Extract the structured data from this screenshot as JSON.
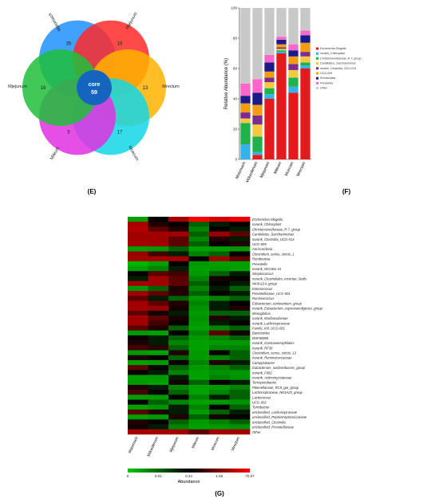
{
  "panel_labels": {
    "e": "(E)",
    "f": "(F)",
    "g": "(G)"
  },
  "venn": {
    "sets": [
      {
        "name": "Mstomach",
        "unique": 35,
        "color": "#1e90ff"
      },
      {
        "name": "Mjejunum",
        "unique": 19,
        "color": "#ff2a2a"
      },
      {
        "name": "Mrectum",
        "unique": 13,
        "color": "#ffb300"
      },
      {
        "name": "Mcecum",
        "unique": 17,
        "color": "#12d7e6"
      },
      {
        "name": "Mileum",
        "unique": 5,
        "color": "#e030e0"
      },
      {
        "name": "Mjejunum",
        "unique": 16,
        "color": "#1fbf3a"
      }
    ],
    "core_label": "core",
    "core_value": 59,
    "core_color": "#1565c0"
  },
  "chart_data": [
    {
      "type": "bar",
      "stacked": true,
      "ylabel": "Relative Abundance (%)",
      "ylim": [
        0,
        100
      ],
      "yticks": [
        0,
        20,
        40,
        60,
        80,
        100
      ],
      "categories": [
        "Mstomach",
        "Mduodenum",
        "Mjejunum",
        "Mileum",
        "Mcecum",
        "Mrectum"
      ],
      "series": [
        {
          "name": "Escherichia-Shigella",
          "color": "#e41a1c",
          "values": [
            0,
            3,
            40,
            70,
            44,
            60
          ]
        },
        {
          "name": "norank_Chloroplast",
          "color": "#33b3e8",
          "values": [
            10,
            2,
            3,
            1,
            4,
            2
          ]
        },
        {
          "name": "Christensenellaceae_R-7_group",
          "color": "#20b24a",
          "values": [
            14,
            10,
            4,
            1,
            6,
            2
          ]
        },
        {
          "name": "Candidatus_Saccharimonas",
          "color": "#f5c842",
          "values": [
            3,
            8,
            4,
            1,
            5,
            4
          ]
        },
        {
          "name": "norank_Clostridia_UCG-014",
          "color": "#7b2d8e",
          "values": [
            4,
            6,
            3,
            1,
            4,
            3
          ]
        },
        {
          "name": "UCG-005",
          "color": "#f39c12",
          "values": [
            6,
            7,
            4,
            2,
            5,
            6
          ]
        },
        {
          "name": "Romboutsia",
          "color": "#1a1a8c",
          "values": [
            5,
            8,
            6,
            3,
            4,
            5
          ]
        },
        {
          "name": "Prevotella",
          "color": "#ff66cc",
          "values": [
            8,
            9,
            5,
            2,
            4,
            3
          ]
        },
        {
          "name": "Other",
          "color": "#c8c8c8",
          "values": [
            50,
            47,
            31,
            19,
            24,
            15
          ]
        }
      ]
    },
    {
      "type": "heatmap",
      "categories": [
        "Mstomach",
        "Mduodenum",
        "Mjejunum",
        "Mileum",
        "Mcecum",
        "Mrectum"
      ],
      "rows": [
        "Escherichia-Shigella",
        "norank_Chloroplast",
        "Christensenellaceae_R-7_group",
        "Candidatus_Saccharimonas",
        "norank_Clostridia_UCG-014",
        "UCG-005",
        "Aeriscardovia",
        "Clostridium_sensu_stricto_1",
        "Romboutsia",
        "Prevotella",
        "norank_WCHB1-41",
        "Streptococcus",
        "norank_Clostridiales_Incertae_Sedis",
        "NK4A214_group",
        "Enterococcus",
        "Prevotellaceae_UCG-001",
        "Ruminococcus",
        "Eubacterium_ruminantium_group",
        "norank_Eubacterium_coprostanoligenes_group",
        "Monoglobus",
        "norank_Muribaculaceae",
        "norank_Lachnospiraceae",
        "Family_XIII_UCG-001",
        "Bacteroides",
        "DNF00809",
        "norank_Gastranaerophilales",
        "norank_RF39",
        "Clostridium_sensu_stricto_13",
        "norank_Ruminococcaceae",
        "Campylobacter",
        "Eubacterium_oxidoreducens_group",
        "norank_F082",
        "norank_Actinomycetaceae",
        "Terrisporobacter",
        "Rikenellaceae_RC9_gut_group",
        "Lachnospiraceae_NK3A20_group",
        "Lactococcus",
        "UCG-002",
        "Turicibacter",
        "unclassified_Lachnospiraceae",
        "unclassified_Peptostreptococcaceae",
        "unclassified_Clostridia",
        "unclassified_Prevotellaceae",
        "Other"
      ],
      "values": [
        [
          0.01,
          0.24,
          5,
          70,
          40,
          60
        ],
        [
          8,
          0.5,
          0.3,
          0.1,
          0.2,
          0.3
        ],
        [
          15,
          1,
          0.5,
          0.05,
          0.3,
          0.2
        ],
        [
          2,
          4,
          3,
          0.1,
          1.5,
          1
        ],
        [
          3,
          2,
          1,
          0.05,
          0.5,
          0.2
        ],
        [
          5,
          3,
          1,
          0.1,
          0.3,
          0.5
        ],
        [
          0.01,
          0.02,
          0.1,
          0.01,
          0.01,
          0.02
        ],
        [
          1.5,
          0.8,
          0.2,
          0.05,
          0.1,
          0.3
        ],
        [
          4,
          6,
          3,
          0.3,
          2,
          1
        ],
        [
          0.005,
          0.01,
          0.3,
          0.02,
          0.01,
          0.01
        ],
        [
          0.01,
          0.05,
          0.2,
          0.01,
          0.02,
          0.01
        ],
        [
          0.3,
          1,
          0.8,
          0.02,
          0.1,
          0.2
        ],
        [
          0.2,
          2,
          1,
          0.05,
          0.4,
          0.3
        ],
        [
          3,
          2,
          1,
          0.1,
          0.3,
          0.2
        ],
        [
          0.02,
          0.1,
          0.5,
          0.05,
          0.2,
          0.1
        ],
        [
          2,
          1,
          0.5,
          0.1,
          0.3,
          0.2
        ],
        [
          1,
          0.2,
          0.1,
          0.02,
          0.05,
          0.1
        ],
        [
          2,
          1,
          0.5,
          0.05,
          0.2,
          0.3
        ],
        [
          3,
          1.5,
          0.4,
          0.03,
          0.2,
          0.5
        ],
        [
          1,
          0.4,
          0.2,
          0.02,
          0.1,
          0.1
        ],
        [
          2,
          1,
          0.4,
          0.03,
          0.5,
          0.2
        ],
        [
          3,
          0.8,
          0.3,
          0.02,
          0.2,
          0.3
        ],
        [
          1,
          0.5,
          0.1,
          0.01,
          0.05,
          0.1
        ],
        [
          0.02,
          0.01,
          0.3,
          0.05,
          1,
          0.4
        ],
        [
          0.3,
          0.2,
          0.1,
          0.02,
          0.05,
          0.1
        ],
        [
          0.5,
          0.2,
          0.05,
          0.01,
          0.02,
          0.02
        ],
        [
          0.8,
          0.6,
          0.1,
          0.01,
          0.05,
          0.05
        ],
        [
          0.02,
          0.01,
          0.5,
          0.02,
          0.3,
          0.1
        ],
        [
          0.5,
          0.3,
          0.1,
          0.02,
          0.05,
          0.1
        ],
        [
          0.01,
          0.02,
          0.3,
          0.05,
          0.5,
          0.2
        ],
        [
          1,
          0.3,
          0.1,
          0.02,
          0.05,
          0.1
        ],
        [
          0.3,
          0.2,
          0.05,
          0.01,
          0.03,
          0.02
        ],
        [
          0.01,
          0.02,
          0.2,
          0.01,
          0.05,
          0.03
        ],
        [
          0.02,
          0.01,
          0.4,
          0.1,
          0.3,
          0.2
        ],
        [
          0.5,
          0.2,
          0.05,
          0.01,
          0.02,
          0.05
        ],
        [
          0.8,
          0.3,
          0.1,
          0.01,
          0.05,
          0.1
        ],
        [
          0.01,
          0.02,
          0.3,
          0.05,
          0.2,
          0.1
        ],
        [
          0.3,
          0.1,
          0.05,
          0.01,
          0.02,
          0.03
        ],
        [
          0.01,
          0.03,
          0.2,
          0.05,
          0.3,
          0.1
        ],
        [
          1,
          0.5,
          0.2,
          0.02,
          0.1,
          0.2
        ],
        [
          0.01,
          0.02,
          0.5,
          0.1,
          0.4,
          0.3
        ],
        [
          0.5,
          0.3,
          0.1,
          0.02,
          0.05,
          0.1
        ],
        [
          0.4,
          0.2,
          0.05,
          0.01,
          0.02,
          0.03
        ],
        [
          5,
          6,
          4,
          1,
          3,
          3
        ]
      ],
      "colorbar": {
        "ticks": [
          "0",
          "0.01",
          "0.24",
          "1.56",
          "70.57"
        ],
        "label": "Abundance",
        "colors": [
          "#00cc00",
          "#000000",
          "#ff0000"
        ]
      }
    }
  ]
}
